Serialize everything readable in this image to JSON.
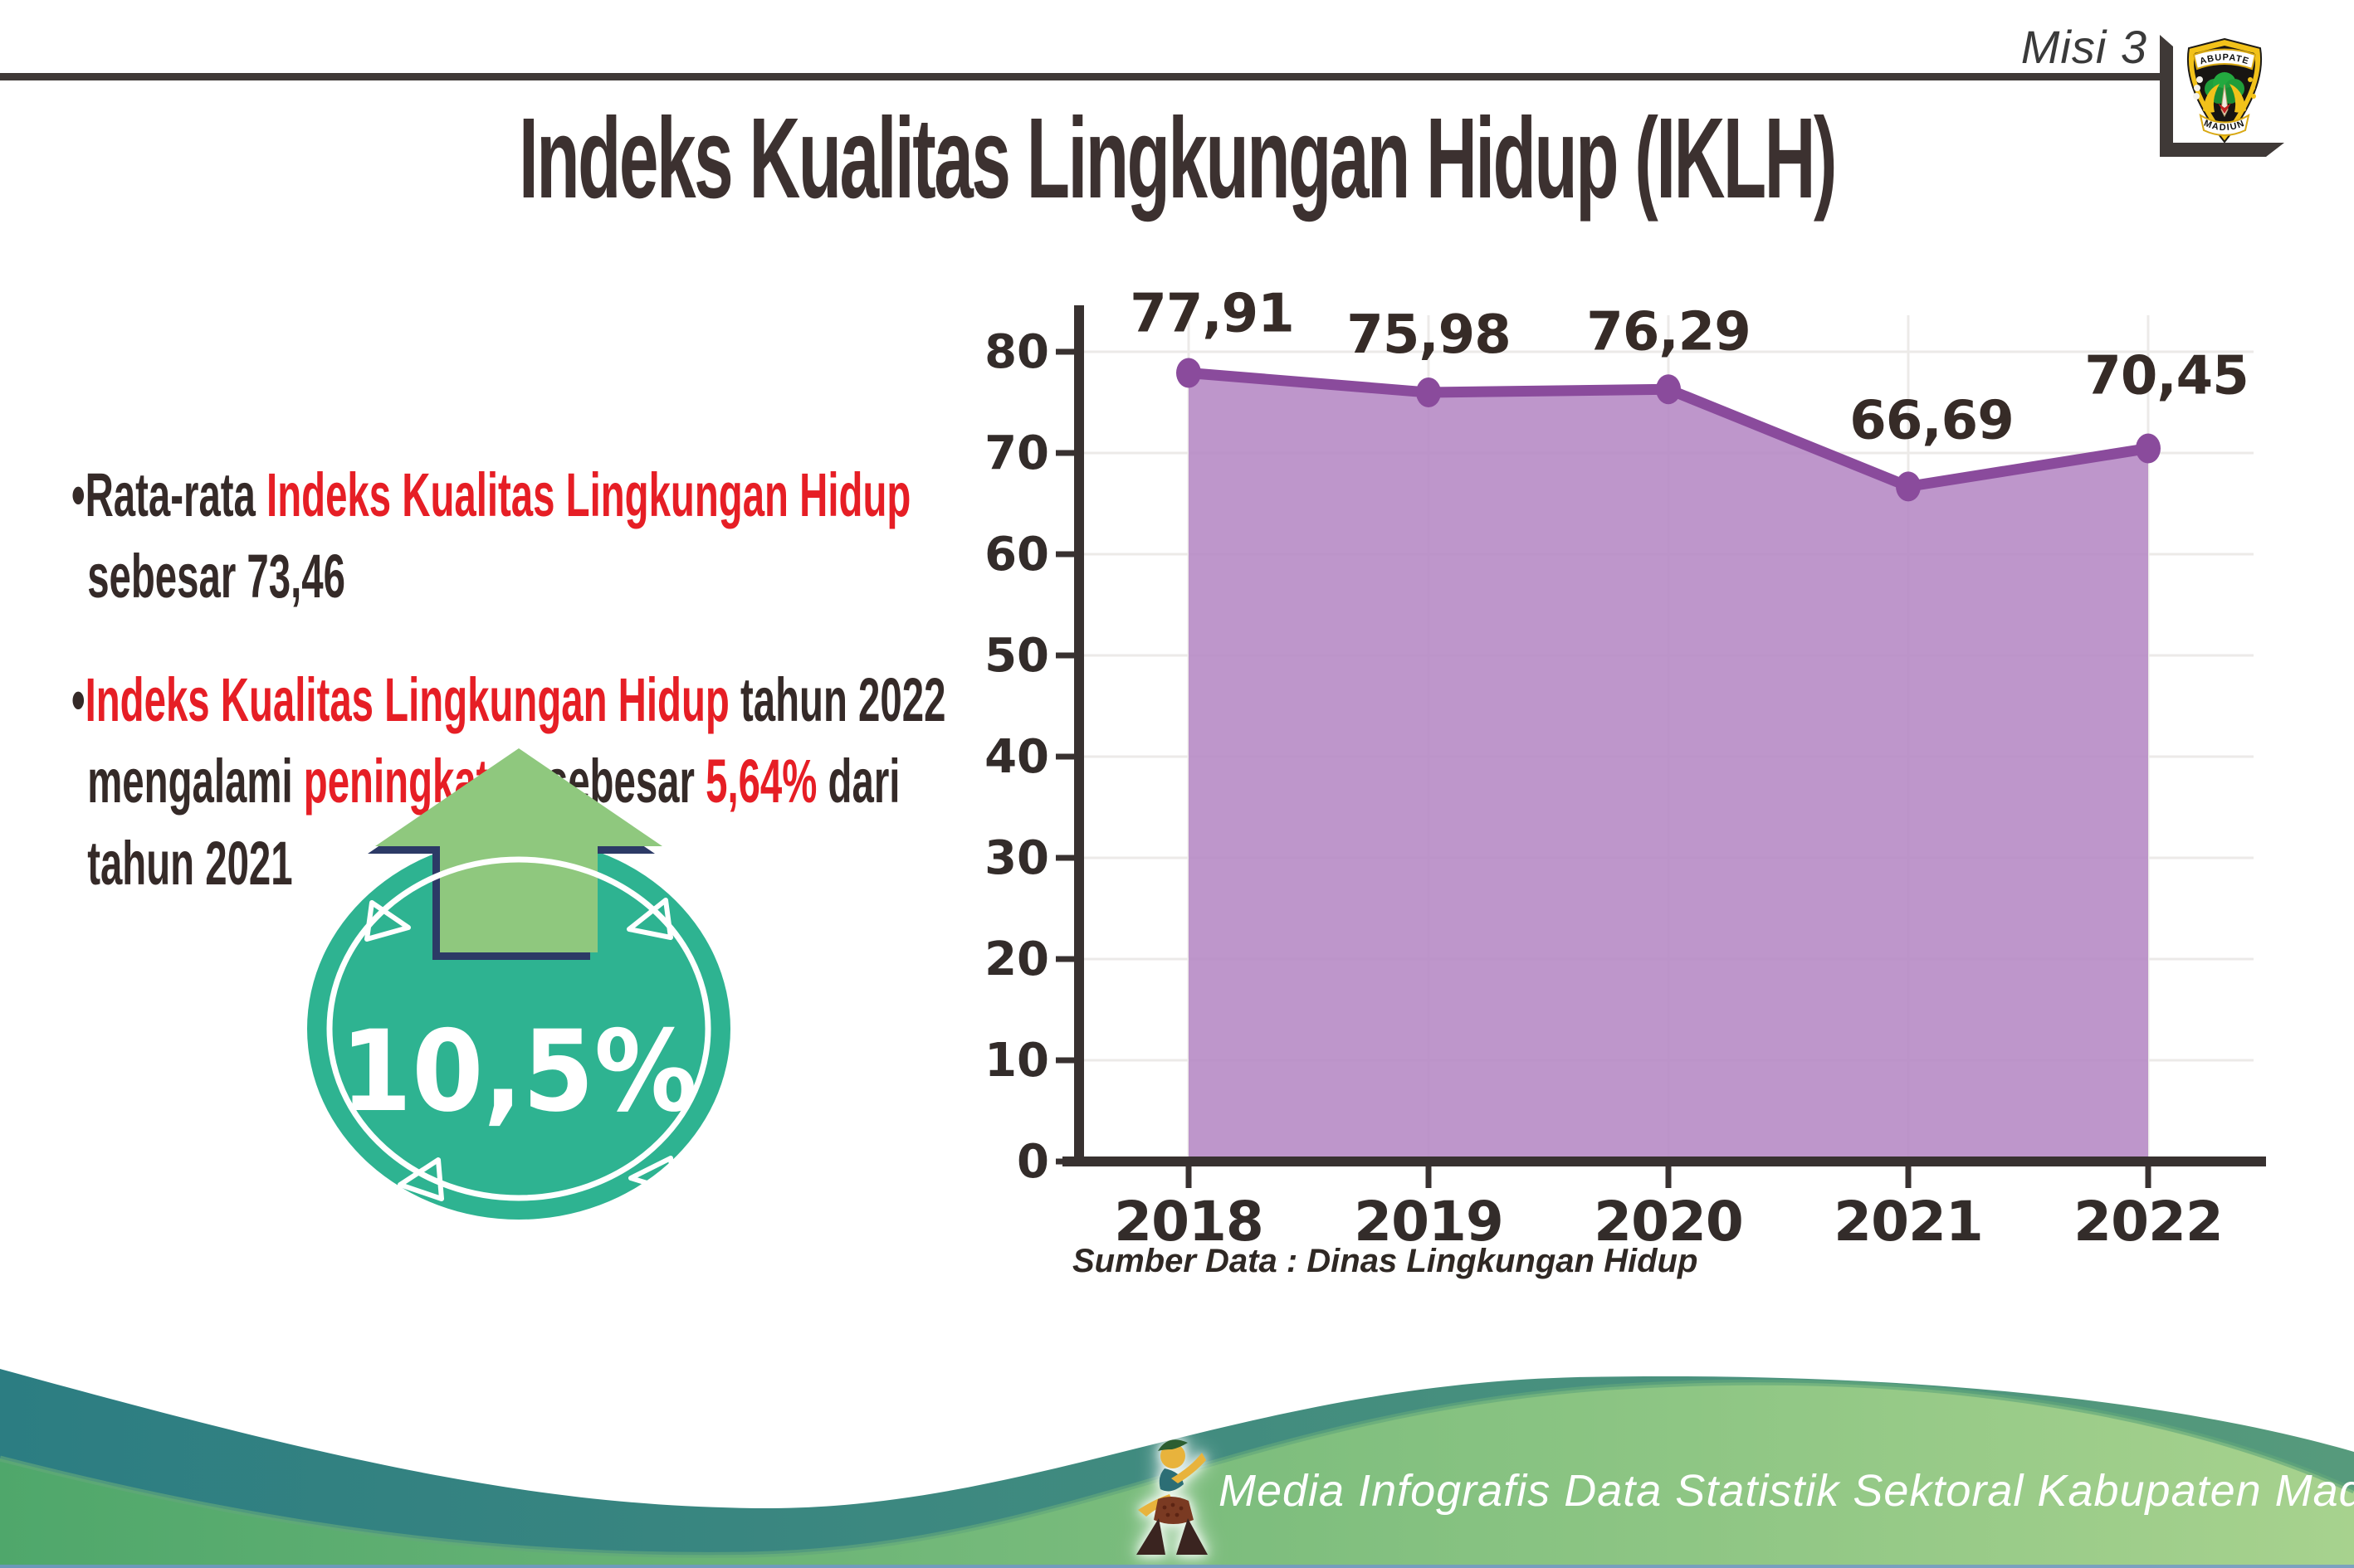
{
  "header": {
    "mission_label": "Misi 3"
  },
  "logo": {
    "top_text": "KABUPATEN",
    "bottom_text": "MADIUN"
  },
  "title": "Indeks Kualitas Lingkungan Hidup (IKLH)",
  "bullets": [
    {
      "lines": [
        [
          {
            "t": "Rata-rata ",
            "red": false
          },
          {
            "t": "Indeks Kualitas Lingkungan Hidup",
            "red": true
          }
        ],
        [
          {
            "t": "sebesar 73,46",
            "red": false
          }
        ]
      ]
    },
    {
      "lines": [
        [
          {
            "t": "Indeks Kualitas Lingkungan Hidup",
            "red": true
          },
          {
            "t": " tahun 2022",
            "red": false
          }
        ],
        [
          {
            "t": "mengalami ",
            "red": false
          },
          {
            "t": "peningkatan",
            "red": true
          },
          {
            "t": " sebesar ",
            "red": false
          },
          {
            "t": "5,64%",
            "red": true
          },
          {
            "t": " dari",
            "red": false
          }
        ],
        [
          {
            "t": "tahun 2021",
            "red": false
          }
        ]
      ]
    }
  ],
  "badge": {
    "value": "10,5%"
  },
  "chart_data": {
    "type": "area",
    "title": "",
    "xlabel": "",
    "ylabel": "",
    "categories": [
      "2018",
      "2019",
      "2020",
      "2021",
      "2022"
    ],
    "values": [
      77.91,
      75.98,
      76.29,
      66.69,
      70.45
    ],
    "point_labels": [
      "77,91",
      "75,98",
      "76,29",
      "66,69",
      "70,45"
    ],
    "series_name": "IKLH",
    "ylim": [
      0,
      85
    ],
    "y_ticks": [
      0,
      10,
      20,
      30,
      40,
      50,
      60,
      70,
      80
    ],
    "grid": true,
    "legend": "none",
    "area_color": "#b78bc5",
    "line_color": "#8a4b9c"
  },
  "source_note": "Sumber Data : Dinas Lingkungan Hidup",
  "footer": {
    "text": "Media Infografis Data Statistik Sektoral Kabupaten Madiun |"
  },
  "colors": {
    "red_accent": "#e61e25",
    "dark_text": "#352a28",
    "axis_text": "#332c2a",
    "teal_badge": "#2eb391",
    "arrow_green": "#8fc87e",
    "navy_outline": "#2c3a66",
    "footer_teal_start": "#2c7d82",
    "footer_teal_end": "#569a7c",
    "footer_green_start": "#4fa76b",
    "footer_green_end": "#a7d28e",
    "gridline": "#eceae8"
  }
}
